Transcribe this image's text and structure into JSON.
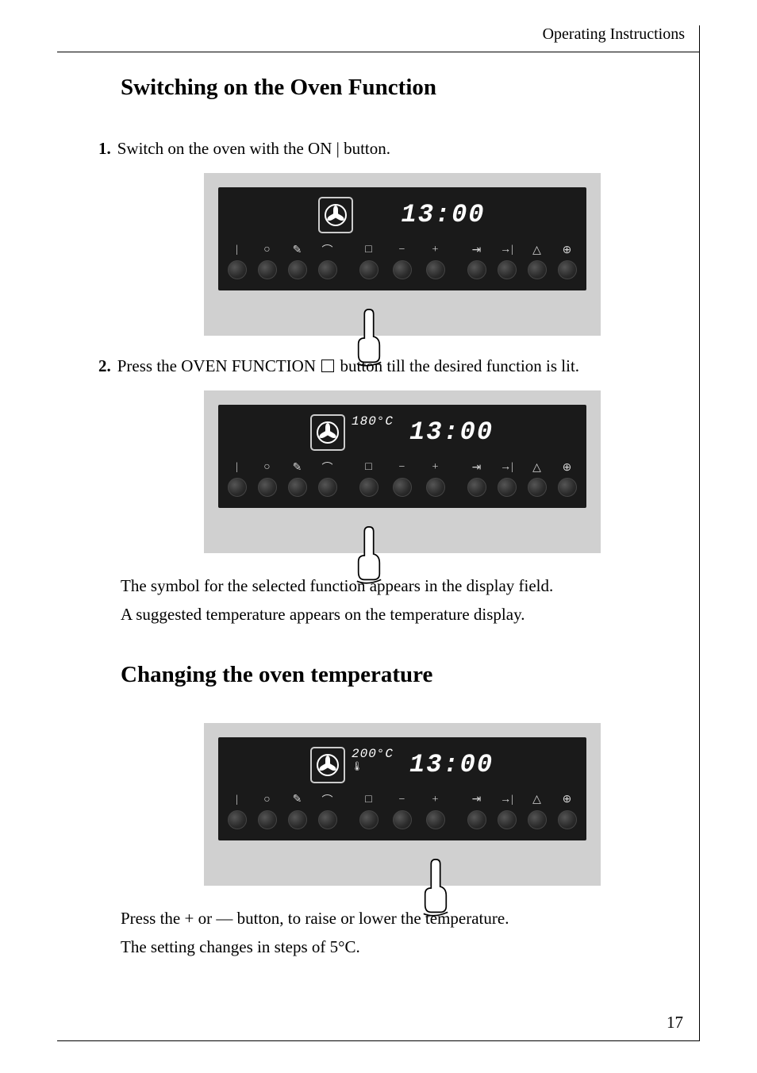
{
  "header": {
    "title": "Operating Instructions"
  },
  "section1": {
    "heading": "Switching on the Oven Function",
    "step1": {
      "num": "1.",
      "text": "Switch on the oven with the ON | button."
    },
    "step2": {
      "num": "2.",
      "pre": "Press the OVEN FUNCTION ",
      "post": " button till the desired function is lit."
    },
    "line1": "The symbol for the selected function appears in the display field.",
    "line2": "A suggested temperature appears on the temperature display."
  },
  "section2": {
    "heading": "Changing the oven temperature",
    "line1": "Press the + or — button, to raise or lower the temperature.",
    "line2": "The setting changes in steps of 5°C."
  },
  "panels": {
    "p1": {
      "temp": "",
      "show_thermo": false,
      "clock": "13:00",
      "finger_btn": 4
    },
    "p2": {
      "temp": "180°C",
      "show_thermo": false,
      "clock": "13:00",
      "finger_btn": 4
    },
    "p3": {
      "temp": "200°C",
      "show_thermo": true,
      "clock": "13:00",
      "finger_btn": 6
    }
  },
  "buttons": {
    "left": [
      "|",
      "○",
      "✎",
      "⌒"
    ],
    "mid": [
      "□",
      "−",
      "+"
    ],
    "right": [
      "⇥",
      "→|",
      "△",
      "⊕"
    ]
  },
  "page_number": "17",
  "colors": {
    "panel_bg": "#1a1a1a",
    "panel_wrap_bg": "#d0d0d0",
    "text_white": "#ffffff",
    "btn_sym": "#d5d5d5"
  }
}
